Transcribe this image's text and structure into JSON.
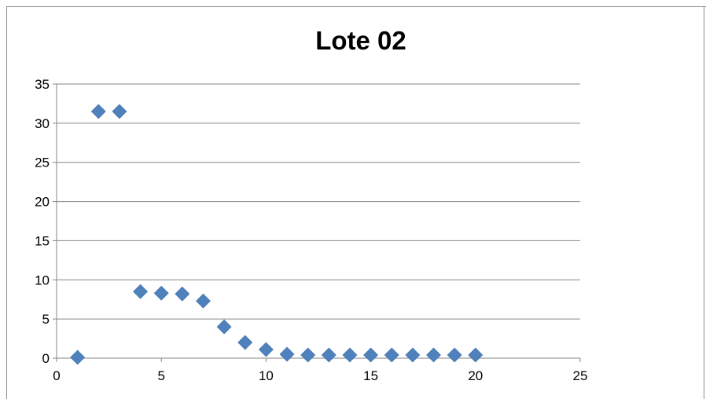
{
  "chart_data": {
    "type": "scatter",
    "title": "Lote 02",
    "xlabel": "",
    "ylabel": "",
    "xlim": [
      0,
      25
    ],
    "ylim": [
      0,
      35
    ],
    "xticks": [
      "0",
      "5",
      "10",
      "15",
      "20",
      "25"
    ],
    "yticks": [
      "0",
      "5",
      "10",
      "15",
      "20",
      "25",
      "30",
      "35"
    ],
    "grid": "horizontal",
    "legend": "none",
    "marker": "diamond",
    "colors": {
      "marker": "#4f81bd",
      "grid": "#868686",
      "axis": "#868686"
    },
    "series": [
      {
        "x": [
          1,
          2,
          3,
          4,
          5,
          6,
          7,
          8,
          9,
          10,
          11,
          12,
          13,
          14,
          15,
          16,
          17,
          18,
          19,
          20
        ],
        "y": [
          0.1,
          31.5,
          31.5,
          8.5,
          8.3,
          8.2,
          7.3,
          4.0,
          2.0,
          1.1,
          0.5,
          0.4,
          0.4,
          0.4,
          0.4,
          0.4,
          0.4,
          0.4,
          0.4,
          0.4
        ]
      }
    ]
  }
}
